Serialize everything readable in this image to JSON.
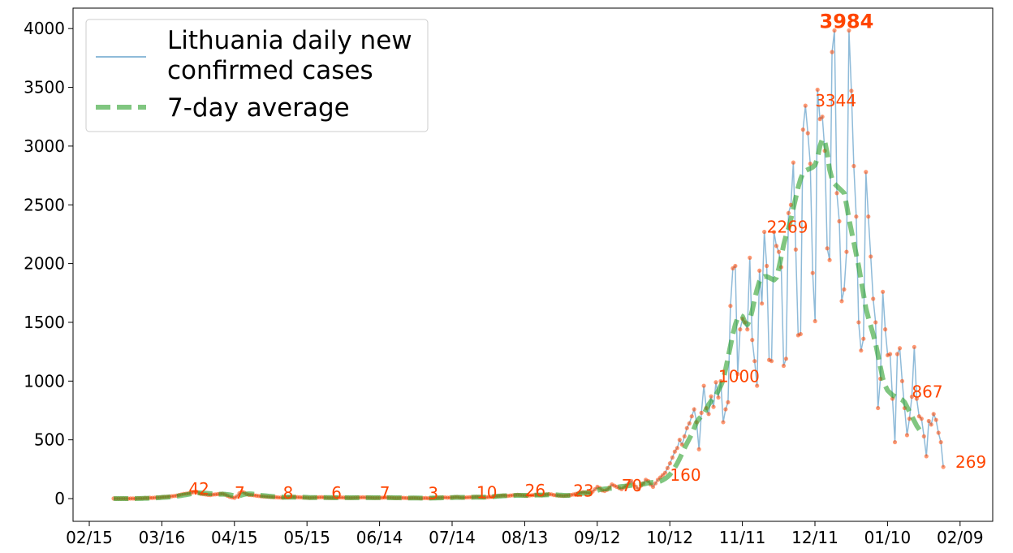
{
  "chart_data": {
    "type": "line",
    "title": "",
    "xlabel": "",
    "ylabel": "",
    "x_start": "2020-02-27",
    "x_tick_labels": [
      "02/15",
      "03/16",
      "04/15",
      "05/15",
      "06/14",
      "07/14",
      "08/13",
      "09/12",
      "10/12",
      "11/11",
      "12/11",
      "01/10",
      "02/09"
    ],
    "y_tick_labels": [
      "0",
      "500",
      "1000",
      "1500",
      "2000",
      "2500",
      "3000",
      "3500",
      "4000"
    ],
    "ylim": [
      -200,
      4200
    ],
    "grid": false,
    "legend": {
      "placement": "top-left",
      "entries": [
        "Lithuania daily new confirmed cases",
        "7-day average"
      ],
      "entry_lines": [
        [
          "Lithuania daily new",
          "confirmed cases"
        ],
        [
          "7-day average"
        ]
      ]
    },
    "colors": {
      "daily": "#1f77b4",
      "avg": "#2ca02c",
      "points": "#ff4500"
    },
    "annotations": [
      {
        "day": 31,
        "value": 42,
        "label": "42"
      },
      {
        "day": 50,
        "value": 7,
        "label": "7"
      },
      {
        "day": 70,
        "value": 8,
        "label": "8"
      },
      {
        "day": 90,
        "value": 6,
        "label": "6"
      },
      {
        "day": 110,
        "value": 7,
        "label": "7"
      },
      {
        "day": 130,
        "value": 3,
        "label": "3"
      },
      {
        "day": 150,
        "value": 10,
        "label": "10"
      },
      {
        "day": 170,
        "value": 26,
        "label": "26"
      },
      {
        "day": 190,
        "value": 23,
        "label": "23"
      },
      {
        "day": 210,
        "value": 70,
        "label": "70"
      },
      {
        "day": 230,
        "value": 160,
        "label": "160"
      },
      {
        "day": 250,
        "value": 1000,
        "label": "1000"
      },
      {
        "day": 270,
        "value": 2269,
        "label": "2269"
      },
      {
        "day": 290,
        "value": 3344,
        "label": "3344"
      },
      {
        "day": 303,
        "value": 3984,
        "label": "3984",
        "bold": true
      },
      {
        "day": 330,
        "value": 867,
        "label": "867"
      },
      {
        "day": 348,
        "value": 269,
        "label": "269"
      }
    ],
    "series": [
      {
        "name": "Lithuania daily new confirmed cases",
        "values": [
          1,
          0,
          0,
          0,
          1,
          0,
          0,
          1,
          1,
          0,
          2,
          3,
          2,
          5,
          4,
          7,
          6,
          8,
          9,
          10,
          12,
          14,
          15,
          17,
          20,
          22,
          25,
          30,
          35,
          40,
          42,
          45,
          48,
          55,
          60,
          50,
          40,
          38,
          35,
          32,
          30,
          34,
          36,
          38,
          40,
          42,
          35,
          25,
          15,
          10,
          7,
          20,
          45,
          60,
          50,
          38,
          32,
          30,
          28,
          25,
          22,
          20,
          18,
          16,
          15,
          14,
          13,
          12,
          10,
          9,
          8,
          10,
          12,
          14,
          15,
          13,
          12,
          11,
          10,
          9,
          8,
          7,
          8,
          9,
          10,
          11,
          12,
          10,
          8,
          7,
          6,
          7,
          8,
          9,
          10,
          9,
          8,
          7,
          6,
          7,
          8,
          9,
          10,
          11,
          10,
          9,
          8,
          7,
          6,
          7,
          7,
          8,
          9,
          10,
          8,
          7,
          6,
          5,
          6,
          7,
          6,
          5,
          4,
          5,
          6,
          5,
          4,
          3,
          4,
          5,
          3,
          4,
          5,
          6,
          7,
          8,
          9,
          10,
          8,
          9,
          10,
          12,
          14,
          10,
          8,
          9,
          10,
          11,
          12,
          13,
          15,
          14,
          12,
          10,
          11,
          13,
          15,
          18,
          20,
          22,
          24,
          26,
          25,
          23,
          26,
          28,
          30,
          32,
          30,
          28,
          26,
          24,
          27,
          29,
          31,
          33,
          30,
          28,
          32,
          35,
          38,
          36,
          30,
          28,
          26,
          24,
          23,
          25,
          27,
          30,
          35,
          40,
          45,
          50,
          55,
          52,
          48,
          45,
          60,
          80,
          100,
          90,
          70,
          65,
          75,
          95,
          120,
          110,
          100,
          90,
          80,
          95,
          110,
          130,
          150,
          120,
          100,
          80,
          110,
          130,
          160,
          150,
          120,
          100,
          130,
          160,
          180,
          200,
          220,
          260,
          300,
          350,
          400,
          430,
          500,
          460,
          530,
          600,
          640,
          700,
          760,
          650,
          420,
          730,
          960,
          770,
          720,
          870,
          780,
          990,
          860,
          1000,
          650,
          760,
          820,
          1640,
          1960,
          1980,
          1060,
          1440,
          1530,
          1500,
          1440,
          2050,
          1350,
          1170,
          960,
          1940,
          1660,
          2270,
          1980,
          1180,
          1170,
          2269,
          2150,
          2100,
          1970,
          1130,
          1190,
          2430,
          2500,
          2860,
          2120,
          1390,
          1400,
          3140,
          3344,
          3110,
          2850,
          1920,
          1510,
          3480,
          3230,
          3250,
          2960,
          2130,
          2030,
          3800,
          3984,
          2600,
          2360,
          1680,
          1780,
          2100,
          3984,
          3470,
          2830,
          2400,
          1500,
          1260,
          1360,
          2780,
          2400,
          2060,
          1700,
          1500,
          770,
          1020,
          1760,
          1440,
          1220,
          1230,
          850,
          480,
          1230,
          1280,
          1000,
          770,
          540,
          680,
          867,
          1290,
          850,
          700,
          680,
          530,
          360,
          660,
          630,
          720,
          670,
          560,
          480,
          269
        ]
      },
      {
        "name": "7-day average",
        "values": [
          1,
          0,
          0,
          0,
          1,
          0,
          0,
          1,
          1,
          1,
          1,
          1,
          2,
          3,
          3,
          4,
          5,
          6,
          7,
          8,
          10,
          11,
          12,
          14,
          16,
          18,
          20,
          23,
          26,
          30,
          33,
          37,
          41,
          45,
          48,
          48,
          48,
          47,
          46,
          44,
          42,
          40,
          38,
          37,
          37,
          38,
          37,
          35,
          32,
          28,
          24,
          22,
          24,
          30,
          36,
          40,
          41,
          40,
          37,
          33,
          29,
          27,
          25,
          23,
          21,
          19,
          17,
          16,
          14,
          13,
          12,
          12,
          12,
          12,
          12,
          12,
          12,
          12,
          12,
          11,
          10,
          9,
          9,
          9,
          9,
          9,
          9,
          9,
          9,
          9,
          9,
          8,
          8,
          8,
          8,
          8,
          8,
          8,
          8,
          8,
          8,
          8,
          8,
          8,
          8,
          8,
          8,
          8,
          8,
          8,
          8,
          8,
          8,
          8,
          8,
          8,
          7,
          7,
          7,
          6,
          6,
          5,
          5,
          5,
          5,
          5,
          5,
          4,
          4,
          4,
          4,
          4,
          5,
          5,
          6,
          6,
          7,
          8,
          8,
          9,
          9,
          10,
          10,
          10,
          10,
          10,
          10,
          11,
          11,
          12,
          12,
          12,
          12,
          12,
          13,
          14,
          15,
          17,
          19,
          21,
          22,
          23,
          24,
          25,
          25,
          26,
          27,
          28,
          28,
          28,
          28,
          28,
          28,
          29,
          29,
          30,
          30,
          30,
          31,
          32,
          33,
          33,
          33,
          32,
          30,
          29,
          28,
          27,
          27,
          28,
          30,
          33,
          37,
          41,
          45,
          48,
          51,
          52,
          55,
          62,
          70,
          77,
          80,
          82,
          84,
          86,
          88,
          92,
          96,
          100,
          103,
          105,
          107,
          110,
          113,
          115,
          117,
          118,
          120,
          123,
          128,
          133,
          136,
          138,
          140,
          142,
          148,
          158,
          170,
          185,
          205,
          232,
          265,
          300,
          340,
          385,
          430,
          470,
          510,
          550,
          600,
          650,
          680,
          700,
          720,
          760,
          800,
          830,
          860,
          880,
          920,
          960,
          1010,
          1100,
          1200,
          1300,
          1400,
          1480,
          1540,
          1560,
          1550,
          1500,
          1480,
          1520,
          1600,
          1700,
          1780,
          1850,
          1880,
          1890,
          1890,
          1880,
          1870,
          1860,
          1880,
          1960,
          2060,
          2160,
          2240,
          2300,
          2380,
          2470,
          2560,
          2650,
          2720,
          2770,
          2790,
          2800,
          2810,
          2820,
          2840,
          2900,
          3000,
          3060,
          3040,
          2940,
          2800,
          2720,
          2680,
          2660,
          2640,
          2620,
          2600,
          2500,
          2380,
          2280,
          2180,
          2080,
          1980,
          1860,
          1740,
          1620,
          1540,
          1470,
          1400,
          1320,
          1220,
          1120,
          1020,
          960,
          920,
          900,
          880,
          870,
          860,
          850,
          840,
          820,
          780,
          740,
          700,
          660,
          620,
          590,
          560
        ]
      }
    ]
  }
}
